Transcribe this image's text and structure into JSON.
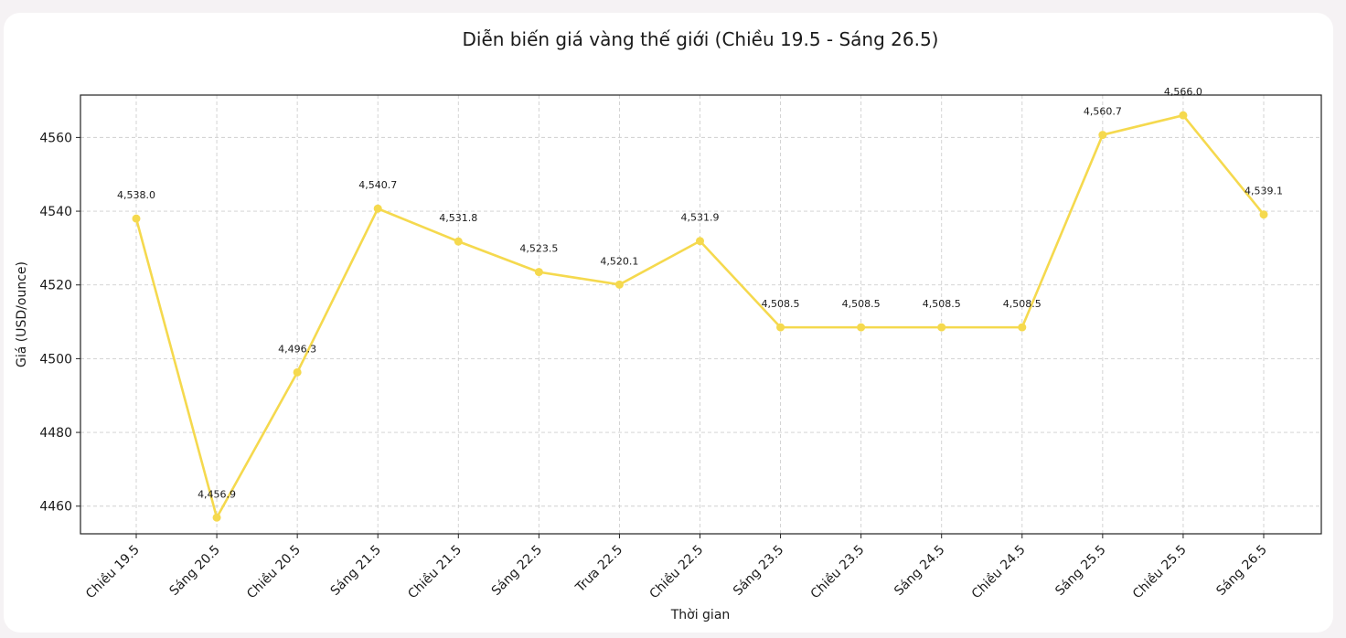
{
  "chart_data": {
    "type": "line",
    "title": "Diễn biến giá vàng thế giới (Chiều 19.5 - Sáng 26.5)",
    "xlabel": "Thời gian",
    "ylabel": "Giá (USD/ounce)",
    "categories": [
      "Chiều 19.5",
      "Sáng 20.5",
      "Chiều 20.5",
      "Sáng 21.5",
      "Chiều 21.5",
      "Sáng 22.5",
      "Trưa 22.5",
      "Chiều 22.5",
      "Sáng 23.5",
      "Chiều 23.5",
      "Sáng 24.5",
      "Chiều 24.5",
      "Sáng 25.5",
      "Chiều 25.5",
      "Sáng 26.5"
    ],
    "series": [
      {
        "values": [
          4538.0,
          4456.9,
          4496.3,
          4540.7,
          4531.8,
          4523.5,
          4520.1,
          4531.9,
          4508.5,
          4508.5,
          4508.5,
          4508.5,
          4560.7,
          4566.0,
          4539.1
        ],
        "color": "#f5d94e"
      }
    ],
    "data_labels": [
      "4,538.0",
      "4,456.9",
      "4,496.3",
      "4,540.7",
      "4,531.8",
      "4,523.5",
      "4,520.1",
      "4,531.9",
      "4,508.5",
      "4,508.5",
      "4,508.5",
      "4,508.5",
      "4,560.7",
      "4,566.0",
      "4,539.1"
    ],
    "yticks": [
      4460,
      4480,
      4500,
      4520,
      4540,
      4560
    ],
    "ylim": [
      4452.5,
      4571.5
    ],
    "grid": true,
    "legend": false
  }
}
